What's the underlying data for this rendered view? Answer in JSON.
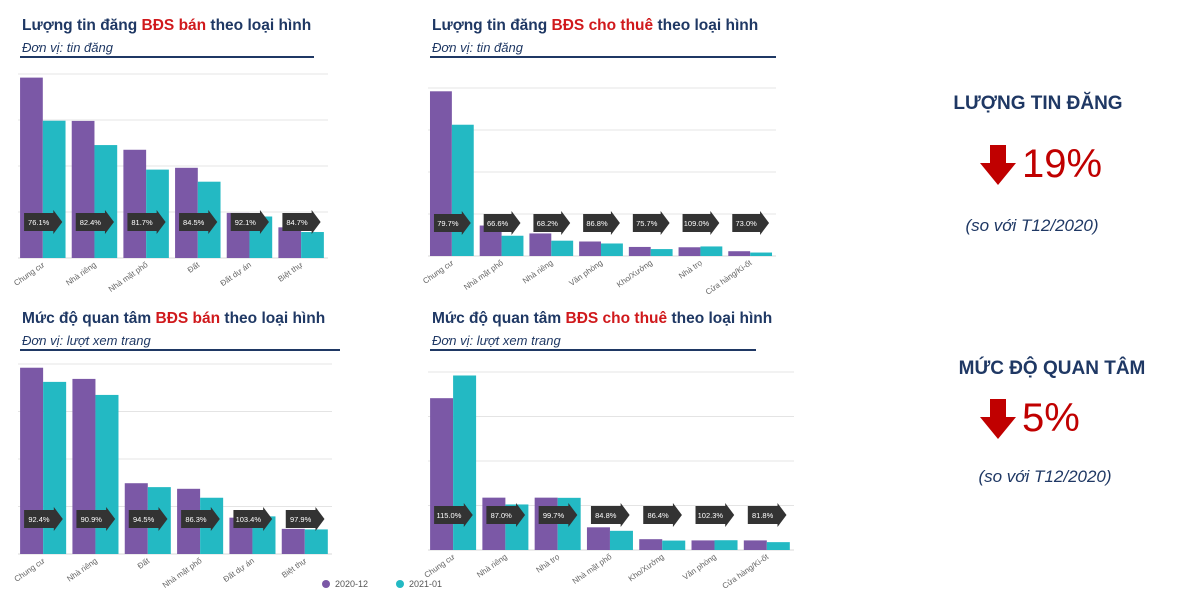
{
  "colors": {
    "series_2020": "#7b58a6",
    "series_2021": "#23b9c3",
    "arrow": "#333333",
    "accent_red": "#d0191c",
    "navy": "#1f3864"
  },
  "panels": [
    {
      "title_pre": "Lượng tin đăng ",
      "title_hl": "BĐS bán",
      "title_post": " theo loại hình",
      "unit": "Đơn vị: tin đăng"
    },
    {
      "title_pre": "Lượng tin đăng ",
      "title_hl": "BĐS cho thuê",
      "title_post": " theo loại hình",
      "unit": "Đơn vị: tin đăng"
    },
    {
      "title_pre": "Mức độ quan tâm ",
      "title_hl": "BĐS bán",
      "title_post": " theo loại hình",
      "unit": "Đơn vị: lượt xem trang"
    },
    {
      "title_pre": "Mức độ quan tâm ",
      "title_hl": "BĐS cho thuê",
      "title_post": " theo loại hình",
      "unit": "Đơn vị: lượt xem trang"
    }
  ],
  "chart_data": [
    {
      "type": "bar",
      "title": "Lượng tin đăng BĐS bán theo loại hình",
      "ylabel": "tin đăng",
      "categories": [
        "Chung cư",
        "Nhà riêng",
        "Nhà mặt phố",
        "Đất",
        "Đất dự án",
        "Biệt thự"
      ],
      "series": [
        {
          "name": "2020-12",
          "values": [
            100,
            76,
            60,
            50,
            25,
            17
          ]
        },
        {
          "name": "2021-01",
          "values": [
            76.1,
            62.6,
            49,
            42.3,
            23,
            14.4
          ]
        }
      ],
      "ratios": [
        "76.1%",
        "82.4%",
        "81.7%",
        "84.5%",
        "92.1%",
        "84.7%"
      ],
      "ylim": [
        0,
        102
      ]
    },
    {
      "type": "bar",
      "title": "Lượng tin đăng BĐS cho thuê theo loại hình",
      "ylabel": "tin đăng",
      "categories": [
        "Chung cư",
        "Nhà mặt phố",
        "Nhà riêng",
        "Văn phòng",
        "Kho/Xưởng",
        "Nhà trọ",
        "Cửa hàng/Ki-ốt"
      ],
      "series": [
        {
          "name": "2020-12",
          "values": [
            100,
            18.5,
            13.7,
            8.8,
            5.5,
            5.3,
            2.9
          ]
        },
        {
          "name": "2021-01",
          "values": [
            79.7,
            12.3,
            9.3,
            7.6,
            4.2,
            5.8,
            2.1
          ]
        }
      ],
      "ratios": [
        "79.7%",
        "66.6%",
        "68.2%",
        "86.8%",
        "75.7%",
        "109.0%",
        "73.0%"
      ],
      "ylim": [
        0,
        102
      ]
    },
    {
      "type": "bar",
      "title": "Mức độ quan tâm BĐS bán theo loại hình",
      "ylabel": "lượt xem trang",
      "categories": [
        "Chung cư",
        "Nhà riêng",
        "Đất",
        "Nhà mặt phố",
        "Đất dự án",
        "Biệt thự"
      ],
      "series": [
        {
          "name": "2020-12",
          "values": [
            100,
            94,
            38,
            35,
            19.5,
            13.5
          ]
        },
        {
          "name": "2021-01",
          "values": [
            92.4,
            85.4,
            35.9,
            30.2,
            20.2,
            13.2
          ]
        }
      ],
      "ratios": [
        "92.4%",
        "90.9%",
        "94.5%",
        "86.3%",
        "103.4%",
        "97.9%"
      ],
      "ylim": [
        0,
        102
      ]
    },
    {
      "type": "bar",
      "title": "Mức độ quan tâm BĐS cho thuê theo loại hình",
      "ylabel": "lượt xem trang",
      "categories": [
        "Chung cư",
        "Nhà riêng",
        "Nhà trọ",
        "Nhà mặt phố",
        "Kho/Xưởng",
        "Văn phòng",
        "Cửa hàng/Ki-ốt"
      ],
      "series": [
        {
          "name": "2020-12",
          "values": [
            87,
            30,
            30,
            13,
            6.2,
            5.5,
            5.5
          ]
        },
        {
          "name": "2021-01",
          "values": [
            100,
            26.1,
            29.9,
            11,
            5.4,
            5.6,
            4.5
          ]
        }
      ],
      "ratios": [
        "115.0%",
        "87.0%",
        "99.7%",
        "84.8%",
        "86.4%",
        "102.3%",
        "81.8%"
      ],
      "ylim": [
        0,
        102
      ]
    }
  ],
  "legend": {
    "series_a": "2020-12",
    "series_b": "2021-01"
  },
  "stats": {
    "listings_title": "LƯỢNG TIN ĐĂNG",
    "listings_value": "19%",
    "listings_note": "(so với T12/2020)",
    "interest_title": "MỨC ĐỘ QUAN TÂM",
    "interest_value": "5%",
    "interest_note": "(so với T12/2020)"
  }
}
